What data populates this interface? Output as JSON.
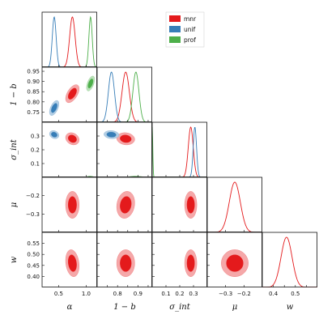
{
  "chart_data": {
    "type": "corner",
    "parameters": [
      {
        "key": "alpha",
        "label": "α",
        "range": [
          0.2,
          1.2
        ],
        "ticks": [
          {
            "v": 0.5,
            "t": "0.5"
          },
          {
            "v": 1.0,
            "t": "1.0"
          }
        ]
      },
      {
        "key": "one_minus_b",
        "label": "1 − b",
        "range": [
          0.7,
          0.97
        ],
        "ticks": [
          {
            "v": 0.75,
            "t": "0.75"
          },
          {
            "v": 0.8,
            "t": "0.80"
          },
          {
            "v": 0.85,
            "t": "0.85"
          },
          {
            "v": 0.9,
            "t": "0.90"
          },
          {
            "v": 0.95,
            "t": "0.95"
          }
        ]
      },
      {
        "key": "sigma_int",
        "label": "σ_int",
        "range": [
          0.0,
          0.4
        ],
        "ticks": [
          {
            "v": 0.1,
            "t": "0.1"
          },
          {
            "v": 0.2,
            "t": "0.2"
          },
          {
            "v": 0.3,
            "t": "0.3"
          }
        ]
      },
      {
        "key": "mu",
        "label": "μ",
        "range": [
          -0.4,
          -0.1
        ],
        "ticks": [
          {
            "v": -0.3,
            "t": "−0.3"
          },
          {
            "v": -0.2,
            "t": "−0.2"
          }
        ]
      },
      {
        "key": "w",
        "label": "w",
        "range": [
          0.35,
          0.6
        ],
        "ticks": [
          {
            "v": 0.4,
            "t": "0.40"
          },
          {
            "v": 0.45,
            "t": "0.45"
          },
          {
            "v": 0.5,
            "t": "0.50"
          },
          {
            "v": 0.55,
            "t": "0.55"
          }
        ]
      }
    ],
    "x_tick_labels": {
      "alpha": [
        "0.5",
        "1.0"
      ],
      "one_minus_b": [
        "0.8",
        "0.9"
      ],
      "sigma_int": [
        "0.1",
        "0.2",
        "0.3"
      ],
      "mu": [
        "−0.3",
        "−0.2"
      ],
      "w": [
        "0.4",
        "0.5"
      ]
    },
    "series": [
      {
        "name": "mnr",
        "color": "#e41a1c",
        "mean": {
          "alpha": 0.75,
          "one_minus_b": 0.84,
          "sigma_int": 0.28,
          "mu": -0.25,
          "w": 0.46
        },
        "sd": {
          "alpha": 0.05,
          "one_minus_b": 0.018,
          "sigma_int": 0.018,
          "mu": 0.03,
          "w": 0.025
        },
        "params": [
          "alpha",
          "one_minus_b",
          "sigma_int",
          "mu",
          "w"
        ]
      },
      {
        "name": "unif",
        "color": "#377eb8",
        "mean": {
          "alpha": 0.42,
          "one_minus_b": 0.77,
          "sigma_int": 0.31
        },
        "sd": {
          "alpha": 0.035,
          "one_minus_b": 0.015,
          "sigma_int": 0.012
        },
        "params": [
          "alpha",
          "one_minus_b",
          "sigma_int"
        ]
      },
      {
        "name": "prof",
        "color": "#4daf4a",
        "mean": {
          "alpha": 1.08,
          "one_minus_b": 0.89,
          "sigma_int": 0.0
        },
        "sd": {
          "alpha": 0.03,
          "one_minus_b": 0.015,
          "sigma_int": 0.004
        },
        "params": [
          "alpha",
          "one_minus_b",
          "sigma_int"
        ]
      }
    ],
    "correlations": {
      "alpha|one_minus_b": 0.55,
      "alpha|sigma_int": -0.2,
      "one_minus_b|sigma_int": -0.1,
      "alpha|mu": 0.0,
      "one_minus_b|mu": 0.15,
      "sigma_int|mu": 0.0,
      "alpha|w": -0.2,
      "one_minus_b|w": 0.0,
      "sigma_int|w": 0.0,
      "mu|w": 0.0
    },
    "contour_levels": [
      "68%",
      "95%"
    ],
    "legend": {
      "position": "top-center",
      "entries": [
        "mnr",
        "unif",
        "prof"
      ]
    },
    "grid": false
  }
}
